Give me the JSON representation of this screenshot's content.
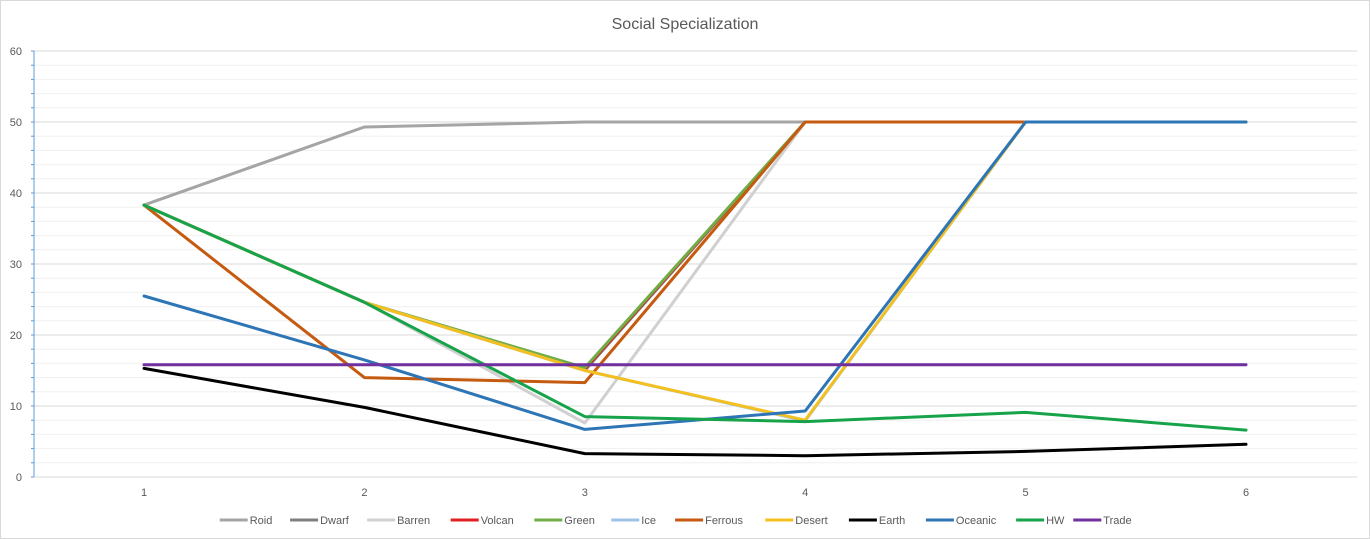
{
  "chart_data": {
    "type": "line",
    "title": "Social Specialization",
    "xlabel": "",
    "ylabel": "",
    "categories": [
      "1",
      "2",
      "3",
      "4",
      "5",
      "6"
    ],
    "ylim": [
      0,
      60
    ],
    "y_ticks": [
      0,
      10,
      20,
      30,
      40,
      50,
      60
    ],
    "grid": true,
    "legend_position": "bottom",
    "series": [
      {
        "name": "Roid",
        "color": "#a5a5a5",
        "values": [
          38.3,
          49.3,
          50,
          50,
          50,
          50
        ]
      },
      {
        "name": "Dwarf",
        "color": "#7f7f7f",
        "values": [
          38.3,
          24.6,
          15,
          50,
          50,
          50
        ]
      },
      {
        "name": "Barren",
        "color": "#d0d0d0",
        "values": [
          38.3,
          24.6,
          7.6,
          50,
          50,
          50
        ]
      },
      {
        "name": "Volcan",
        "color": "#e02020",
        "values": [
          38.3,
          24.6,
          15.2,
          50,
          50,
          50
        ]
      },
      {
        "name": "Green",
        "color": "#70ad47",
        "values": [
          38.3,
          24.6,
          15.4,
          50,
          50,
          50
        ]
      },
      {
        "name": "Ice",
        "color": "#9dc3e6",
        "values": [
          38.3,
          24.6,
          15,
          7.9,
          50,
          50
        ]
      },
      {
        "name": "Ferrous",
        "color": "#c55a11",
        "values": [
          38.3,
          14,
          13.3,
          50,
          50,
          50
        ]
      },
      {
        "name": "Desert",
        "color": "#f4c020",
        "values": [
          38.3,
          24.6,
          15,
          8,
          50,
          50
        ]
      },
      {
        "name": "Earth",
        "color": "#000000",
        "values": [
          15.3,
          9.8,
          3.3,
          3,
          3.6,
          4.6
        ]
      },
      {
        "name": "Oceanic",
        "color": "#2e75b6",
        "values": [
          25.5,
          16.5,
          6.7,
          9.3,
          50,
          50
        ]
      },
      {
        "name": "HW",
        "color": "#16a34a",
        "values": [
          38.3,
          24.6,
          8.5,
          7.8,
          9.1,
          6.6
        ]
      },
      {
        "name": "Trade",
        "color": "#7030a0",
        "values": [
          15.8,
          15.8,
          15.8,
          15.8,
          15.8,
          15.8
        ]
      }
    ]
  }
}
